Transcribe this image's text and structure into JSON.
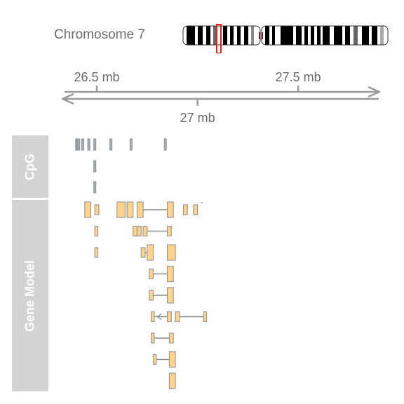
{
  "chromosome": {
    "label": "Chromosome 7"
  },
  "axis": {
    "unit": "mb",
    "range_mb": [
      26.35,
      27.9
    ],
    "ticks": [
      {
        "value": 26.5,
        "label": "26.5 mb",
        "side": "top"
      },
      {
        "value": 27.0,
        "label": "27 mb",
        "side": "bottom"
      },
      {
        "value": 27.5,
        "label": "27.5 mb",
        "side": "top"
      }
    ]
  },
  "tracks": {
    "cpg": {
      "label": "CpG"
    },
    "gene_model": {
      "label": "Gene Model"
    }
  },
  "colors": {
    "text": "#6b6b6b",
    "axis": "#9a9a9a",
    "panel": "#d3d3d3",
    "cpg_fill": "#a7adb0",
    "cpg_stroke": "#8a9296",
    "exon_fill": "#ffd38a",
    "exon_stroke": "#9a9a9a",
    "highlight": "#e8201c"
  },
  "chart_data": {
    "type": "genome-track",
    "chromosome": "7",
    "cpg_rows": [
      [
        26.4,
        26.405,
        26.41,
        26.43,
        26.46,
        26.49,
        26.57,
        26.67,
        26.84
      ],
      [
        26.49
      ],
      [
        26.49
      ]
    ],
    "gene_rows": [
      {
        "exons": [
          [
            26.44,
            26.47
          ],
          [
            26.49,
            26.51
          ],
          [
            26.6,
            26.64
          ],
          [
            26.65,
            26.68
          ],
          [
            26.7,
            26.73
          ],
          [
            26.85,
            26.88
          ],
          [
            26.93,
            26.95
          ],
          [
            26.98,
            27.0
          ]
        ],
        "introns": [
          [
            26.73,
            26.85
          ]
        ]
      },
      {
        "exons": [
          [
            26.49,
            26.505
          ],
          [
            26.68,
            26.7
          ],
          [
            26.7,
            26.72
          ],
          [
            26.73,
            26.75
          ],
          [
            26.85,
            26.87
          ]
        ],
        "introns": [
          [
            26.75,
            26.85
          ]
        ]
      },
      {
        "exons": [
          [
            26.49,
            26.505
          ],
          [
            26.72,
            26.74
          ],
          [
            26.75,
            26.78
          ],
          [
            26.85,
            26.89
          ]
        ],
        "introns": [
          [
            26.74,
            26.75
          ]
        ]
      },
      {
        "exons": [
          [
            26.76,
            26.78
          ],
          [
            26.85,
            26.88
          ]
        ],
        "introns": [
          [
            26.78,
            26.85
          ]
        ]
      },
      {
        "exons": [
          [
            26.76,
            26.78
          ],
          [
            26.85,
            26.88
          ]
        ],
        "introns": [
          [
            26.78,
            26.85
          ]
        ]
      },
      {
        "exons": [
          [
            26.77,
            26.785
          ],
          [
            26.85,
            26.87
          ],
          [
            26.89,
            26.91
          ],
          [
            27.03,
            27.045
          ]
        ],
        "introns": [
          [
            26.785,
            26.85
          ],
          [
            26.91,
            27.03
          ]
        ]
      },
      {
        "exons": [
          [
            26.77,
            26.785
          ],
          [
            26.86,
            26.88
          ]
        ],
        "introns": [
          [
            26.785,
            26.86
          ]
        ]
      },
      {
        "exons": [
          [
            26.78,
            26.795
          ],
          [
            26.86,
            26.89
          ]
        ],
        "introns": [
          [
            26.795,
            26.86
          ]
        ]
      },
      {
        "exons": [
          [
            26.86,
            26.89
          ]
        ],
        "introns": []
      }
    ]
  }
}
